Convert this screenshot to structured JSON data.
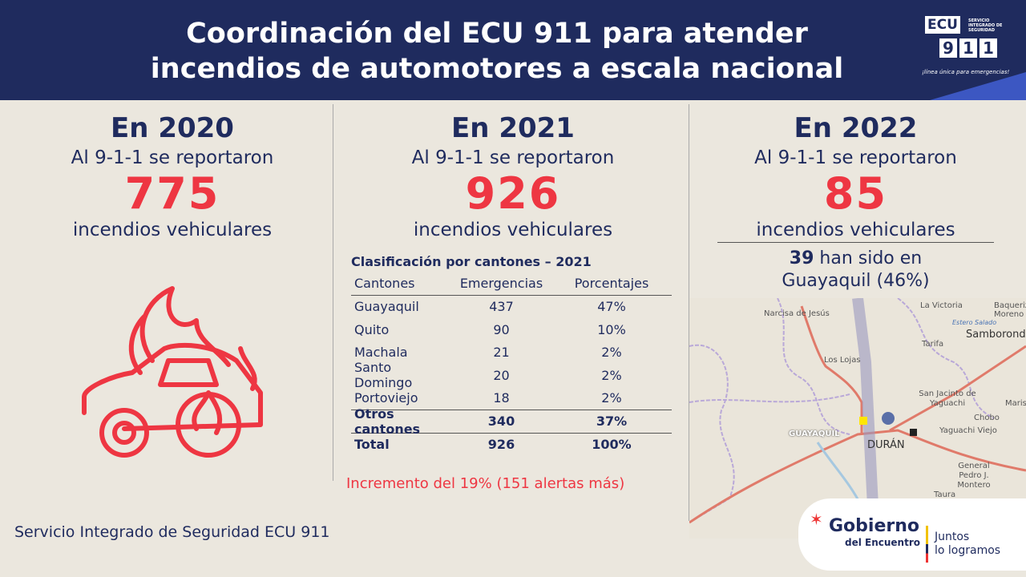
{
  "header": {
    "title_line1": "Coordinación del ECU 911 para atender",
    "title_line2": "incendios de automotores a escala nacional",
    "logo": {
      "ecu": "ECU",
      "service": "SERVICIO INTEGRADO DE SEGURIDAD",
      "digits": [
        "9",
        "1",
        "1"
      ],
      "tagline": "¡línea única para emergencias!"
    }
  },
  "years": [
    {
      "year": "En 2020",
      "reported": "Al 9-1-1 se reportaron",
      "count": "775",
      "label": "incendios vehiculares"
    },
    {
      "year": "En 2021",
      "reported": "Al 9-1-1 se reportaron",
      "count": "926",
      "label": "incendios vehiculares"
    },
    {
      "year": "En 2022",
      "reported": "Al 9-1-1 se reportaron",
      "count": "85",
      "label": "incendios vehiculares"
    }
  ],
  "guayaquil": {
    "count": "39",
    "text1": "han sido en",
    "text2": "Guayaquil (46%)"
  },
  "table": {
    "caption": "Clasificación por cantones – 2021",
    "headers": [
      "Cantones",
      "Emergencias",
      "Porcentajes"
    ],
    "rows": [
      [
        "Guayaquil",
        "437",
        "47%"
      ],
      [
        "Quito",
        "90",
        "10%"
      ],
      [
        "Machala",
        "21",
        "2%"
      ],
      [
        "Santo Domingo",
        "20",
        "2%"
      ],
      [
        "Portoviejo",
        "18",
        "2%"
      ]
    ],
    "others": [
      "Otros cantones",
      "340",
      "37%"
    ],
    "total": [
      "Total",
      "926",
      "100%"
    ]
  },
  "increase": "Incremento del 19% (151 alertas más)",
  "footer": "Servicio Integrado de Seguridad ECU 911",
  "map_labels": [
    "Narcisa de Jesús",
    "La Victoria",
    "Baquerizo Moreno",
    "Estero Salado",
    "Samborondón",
    "Tarifa",
    "Los Lojas",
    "San Jacinto de Yaguachi",
    "Marise",
    "Chobo",
    "GUAYAQUIL",
    "DURÁN",
    "Yaguachi Viejo",
    "General Pedro J. Montero",
    "Taura"
  ],
  "gobierno": {
    "name": "Gobierno",
    "sub": "del Encuentro",
    "slogan1": "Juntos",
    "slogan2": "lo logramos"
  }
}
